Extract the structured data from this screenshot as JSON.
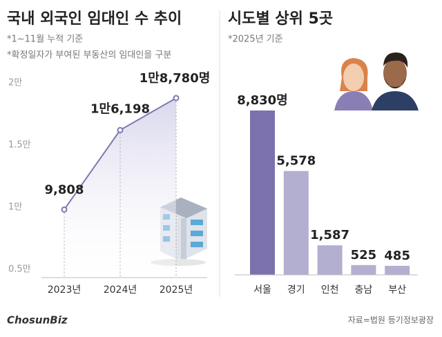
{
  "chart_data": [
    {
      "type": "line",
      "title": "국내 외국인 임대인 수 추이",
      "notes": [
        "*1~11월 누적 기준",
        "*확정일자가 부여된 부동산의 임대인을 구분"
      ],
      "categories": [
        "2023년",
        "2024년",
        "2025년"
      ],
      "values": [
        9808,
        16198,
        18780
      ],
      "value_labels": [
        "9,808",
        "1만6,198",
        "1만8,780명"
      ],
      "color": "#7b78b0",
      "ylim": [
        5000,
        20000
      ],
      "yticks": [
        {
          "value": 5000,
          "label": "0.5만"
        },
        {
          "value": 10000,
          "label": "1만"
        },
        {
          "value": 15000,
          "label": "1.5만"
        },
        {
          "value": 20000,
          "label": "2만"
        }
      ]
    },
    {
      "type": "bar",
      "title": "시도별 상위 5곳",
      "notes": [
        "*2025년 기준"
      ],
      "categories": [
        "서울",
        "경기",
        "인천",
        "충남",
        "부산"
      ],
      "values": [
        8830,
        5578,
        1587,
        525,
        485
      ],
      "value_labels": [
        "8,830명",
        "5,578",
        "1,587",
        "525",
        "485"
      ],
      "colors": [
        "#7b72ad",
        "#b3afd0",
        "#b3afd0",
        "#b3afd0",
        "#b3afd0"
      ]
    }
  ],
  "logo": "ChosunBiz",
  "source": "자료=법원 등기정보광장"
}
